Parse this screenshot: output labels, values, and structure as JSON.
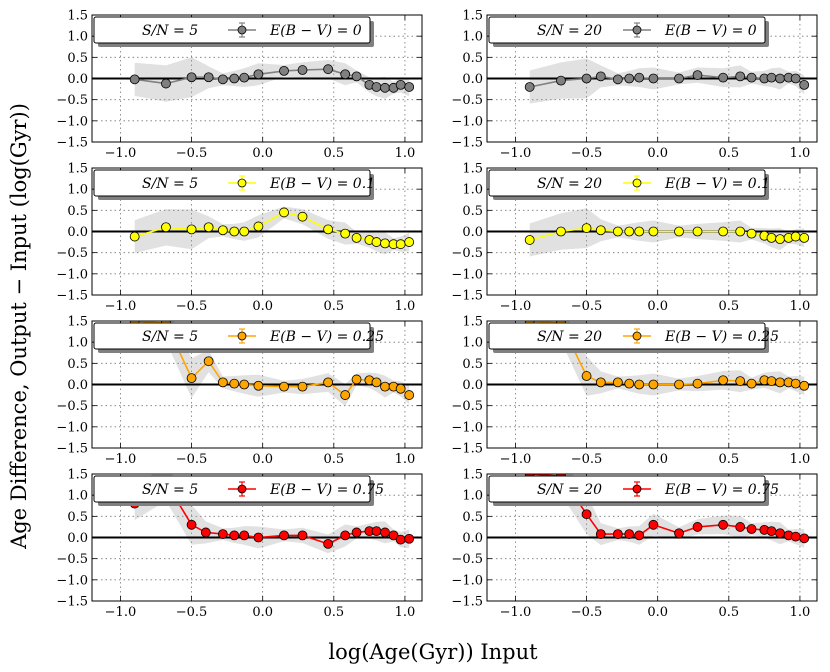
{
  "figure": {
    "xlabel": "log(Age(Gyr)) Input",
    "ylabel": "Age Difference, Output − Input (log(Gyr))"
  },
  "chart_data": [
    {
      "type": "line",
      "panel": "row1-left",
      "sn_label": "S/N = 5",
      "legend": "E(B − V) = 0",
      "color": "#808080",
      "x": [
        -0.9,
        -0.68,
        -0.5,
        -0.38,
        -0.28,
        -0.2,
        -0.13,
        -0.03,
        0.15,
        0.28,
        0.46,
        0.58,
        0.66,
        0.75,
        0.8,
        0.86,
        0.92,
        0.97,
        1.03
      ],
      "y": [
        -0.02,
        -0.12,
        0.03,
        0.03,
        -0.02,
        0.0,
        0.02,
        0.1,
        0.18,
        0.2,
        0.22,
        0.1,
        0.05,
        -0.15,
        -0.2,
        -0.22,
        -0.22,
        -0.15,
        -0.2
      ],
      "xlim": [
        -1.2,
        1.12
      ],
      "ylim": [
        -1.5,
        1.5
      ],
      "xticks": [
        -1.0,
        -0.5,
        0.0,
        0.5,
        1.0
      ],
      "yticks": [
        -1.5,
        -1.0,
        -0.5,
        0.0,
        0.5,
        1.0,
        1.5
      ]
    },
    {
      "type": "line",
      "panel": "row1-right",
      "sn_label": "S/N = 20",
      "legend": "E(B − V) = 0",
      "color": "#808080",
      "x": [
        -0.9,
        -0.68,
        -0.5,
        -0.4,
        -0.28,
        -0.2,
        -0.13,
        -0.03,
        0.15,
        0.28,
        0.46,
        0.58,
        0.66,
        0.75,
        0.8,
        0.86,
        0.92,
        0.97,
        1.03
      ],
      "y": [
        -0.2,
        -0.05,
        0.0,
        0.05,
        -0.02,
        0.0,
        0.02,
        0.0,
        0.0,
        0.08,
        0.02,
        0.05,
        0.02,
        0.0,
        0.02,
        0.0,
        0.02,
        0.0,
        -0.15
      ],
      "xlim": [
        -1.2,
        1.12
      ],
      "ylim": [
        -1.5,
        1.5
      ],
      "xticks": [
        -1.0,
        -0.5,
        0.0,
        0.5,
        1.0
      ],
      "yticks": [
        -1.5,
        -1.0,
        -0.5,
        0.0,
        0.5,
        1.0,
        1.5
      ]
    },
    {
      "type": "line",
      "panel": "row2-left",
      "sn_label": "S/N = 5",
      "legend": "E(B − V) = 0.1",
      "color": "#ffff00",
      "x": [
        -0.9,
        -0.68,
        -0.5,
        -0.38,
        -0.28,
        -0.2,
        -0.13,
        -0.03,
        0.15,
        0.28,
        0.46,
        0.58,
        0.66,
        0.75,
        0.8,
        0.86,
        0.92,
        0.97,
        1.03
      ],
      "y": [
        -0.12,
        0.1,
        0.05,
        0.1,
        0.03,
        0.0,
        0.0,
        0.12,
        0.45,
        0.35,
        0.05,
        -0.05,
        -0.15,
        -0.2,
        -0.25,
        -0.28,
        -0.3,
        -0.3,
        -0.25
      ],
      "xlim": [
        -1.2,
        1.12
      ],
      "ylim": [
        -1.5,
        1.5
      ],
      "xticks": [
        -1.0,
        -0.5,
        0.0,
        0.5,
        1.0
      ],
      "yticks": [
        -1.5,
        -1.0,
        -0.5,
        0.0,
        0.5,
        1.0,
        1.5
      ]
    },
    {
      "type": "line",
      "panel": "row2-right",
      "sn_label": "S/N = 20",
      "legend": "E(B − V) = 0.1",
      "color": "#ffff00",
      "x": [
        -0.9,
        -0.68,
        -0.5,
        -0.4,
        -0.28,
        -0.2,
        -0.13,
        -0.03,
        0.15,
        0.28,
        0.46,
        0.58,
        0.66,
        0.75,
        0.8,
        0.86,
        0.92,
        0.97,
        1.03
      ],
      "y": [
        -0.2,
        0.0,
        0.08,
        0.03,
        0.0,
        0.0,
        0.0,
        0.0,
        0.0,
        0.0,
        0.0,
        0.0,
        -0.05,
        -0.1,
        -0.15,
        -0.18,
        -0.15,
        -0.12,
        -0.15
      ],
      "xlim": [
        -1.2,
        1.12
      ],
      "ylim": [
        -1.5,
        1.5
      ],
      "xticks": [
        -1.0,
        -0.5,
        0.0,
        0.5,
        1.0
      ],
      "yticks": [
        -1.5,
        -1.0,
        -0.5,
        0.0,
        0.5,
        1.0,
        1.5
      ]
    },
    {
      "type": "line",
      "panel": "row3-left",
      "sn_label": "S/N = 5",
      "legend": "E(B − V) = 0.25",
      "color": "#ffa500",
      "x": [
        -0.9,
        -0.68,
        -0.5,
        -0.38,
        -0.28,
        -0.2,
        -0.13,
        -0.03,
        0.15,
        0.28,
        0.46,
        0.58,
        0.66,
        0.75,
        0.8,
        0.86,
        0.92,
        0.97,
        1.03
      ],
      "y": [
        1.5,
        1.45,
        0.15,
        0.55,
        0.05,
        0.02,
        0.0,
        -0.03,
        -0.05,
        -0.05,
        0.05,
        -0.25,
        0.12,
        0.1,
        0.05,
        -0.05,
        -0.05,
        -0.1,
        -0.25
      ],
      "xlim": [
        -1.2,
        1.12
      ],
      "ylim": [
        -1.5,
        1.5
      ],
      "xticks": [
        -1.0,
        -0.5,
        0.0,
        0.5,
        1.0
      ],
      "yticks": [
        -1.5,
        -1.0,
        -0.5,
        0.0,
        0.5,
        1.0,
        1.5
      ]
    },
    {
      "type": "line",
      "panel": "row3-right",
      "sn_label": "S/N = 20",
      "legend": "E(B − V) = 0.25",
      "color": "#ffa500",
      "x": [
        -0.9,
        -0.68,
        -0.5,
        -0.4,
        -0.28,
        -0.2,
        -0.13,
        -0.03,
        0.15,
        0.28,
        0.46,
        0.58,
        0.66,
        0.75,
        0.8,
        0.86,
        0.92,
        0.97,
        1.03
      ],
      "y": [
        1.5,
        1.45,
        0.2,
        0.05,
        0.05,
        0.02,
        0.0,
        0.0,
        0.0,
        0.02,
        0.1,
        0.08,
        0.02,
        0.1,
        0.08,
        0.05,
        0.05,
        0.02,
        -0.03
      ],
      "xlim": [
        -1.2,
        1.12
      ],
      "ylim": [
        -1.5,
        1.5
      ],
      "xticks": [
        -1.0,
        -0.5,
        0.0,
        0.5,
        1.0
      ],
      "yticks": [
        -1.5,
        -1.0,
        -0.5,
        0.0,
        0.5,
        1.0,
        1.5
      ]
    },
    {
      "type": "line",
      "panel": "row4-left",
      "sn_label": "S/N = 5",
      "legend": "E(B − V) = 0.75",
      "color": "#ff0000",
      "x": [
        -0.9,
        -0.68,
        -0.5,
        -0.4,
        -0.28,
        -0.2,
        -0.13,
        -0.03,
        0.15,
        0.28,
        0.46,
        0.58,
        0.66,
        0.75,
        0.8,
        0.86,
        0.92,
        0.97,
        1.03
      ],
      "y": [
        0.8,
        1.3,
        0.3,
        0.12,
        0.08,
        0.05,
        0.05,
        0.0,
        0.05,
        0.05,
        -0.15,
        0.05,
        0.12,
        0.15,
        0.15,
        0.12,
        0.05,
        -0.05,
        -0.03
      ],
      "xlim": [
        -1.2,
        1.12
      ],
      "ylim": [
        -1.5,
        1.5
      ],
      "xticks": [
        -1.0,
        -0.5,
        0.0,
        0.5,
        1.0
      ],
      "yticks": [
        -1.5,
        -1.0,
        -0.5,
        0.0,
        0.5,
        1.0,
        1.5
      ]
    },
    {
      "type": "line",
      "panel": "row4-right",
      "sn_label": "S/N = 20",
      "legend": "E(B − V) = 0.75",
      "color": "#ff0000",
      "x": [
        -0.9,
        -0.68,
        -0.5,
        -0.4,
        -0.28,
        -0.2,
        -0.13,
        -0.03,
        0.15,
        0.28,
        0.46,
        0.58,
        0.66,
        0.75,
        0.8,
        0.86,
        0.92,
        0.97,
        1.03
      ],
      "y": [
        1.5,
        1.45,
        0.55,
        0.08,
        0.08,
        0.08,
        0.05,
        0.3,
        0.1,
        0.25,
        0.3,
        0.25,
        0.2,
        0.18,
        0.15,
        0.1,
        0.05,
        0.02,
        -0.02
      ],
      "xlim": [
        -1.2,
        1.12
      ],
      "ylim": [
        -1.5,
        1.5
      ],
      "xticks": [
        -1.0,
        -0.5,
        0.0,
        0.5,
        1.0
      ],
      "yticks": [
        -1.5,
        -1.0,
        -0.5,
        0.0,
        0.5,
        1.0,
        1.5
      ]
    }
  ]
}
